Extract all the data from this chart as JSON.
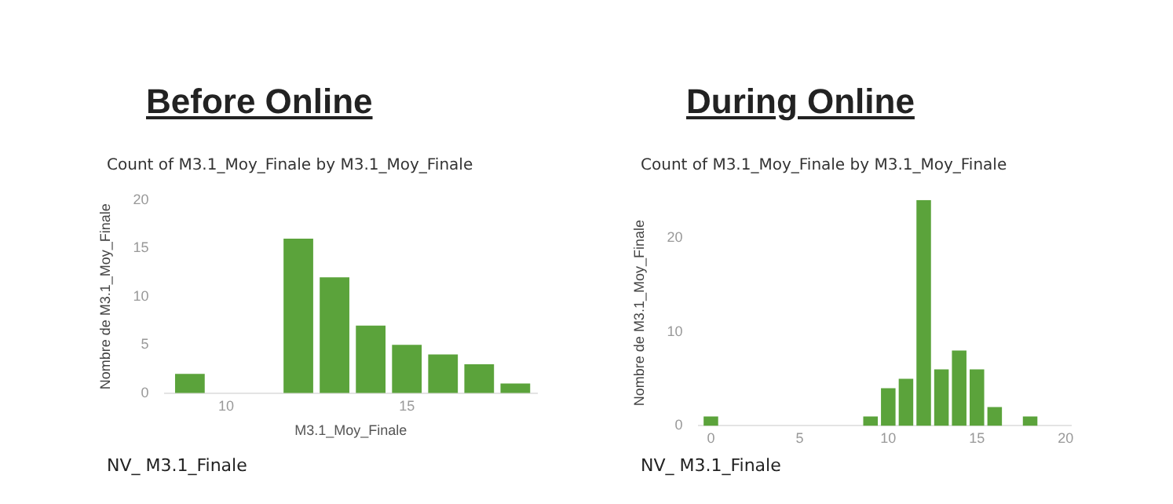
{
  "chart_data": [
    {
      "type": "bar",
      "title": "Before Online",
      "subtitle": "Count of M3.1_Moy_Finale by M3.1_Moy_Finale",
      "xlabel": "M3.1_Moy_Finale",
      "ylabel": "Nombre de M3.1_Moy_Finale",
      "annotations": [
        "NV_ M3.1_Finale"
      ],
      "x": [
        9,
        12,
        13,
        14,
        15,
        16,
        17,
        18
      ],
      "values": [
        2,
        16,
        12,
        7,
        5,
        4,
        3,
        1
      ],
      "color": "#5ba33b",
      "xlim": [
        8.3,
        18.6
      ],
      "xticks": [
        10,
        15
      ],
      "ylim": [
        0,
        20
      ],
      "yticks": [
        0,
        5,
        10,
        15,
        20
      ],
      "grid": false,
      "legend": false
    },
    {
      "type": "bar",
      "title": "During Online",
      "subtitle": "Count of M3.1_Moy_Finale by M3.1_Moy_Finale",
      "ylabel": "Nombre de M3.1_Moy_Finale",
      "annotations": [
        "NV_ M3.1_Finale"
      ],
      "x": [
        0,
        9,
        10,
        11,
        12,
        13,
        14,
        15,
        16,
        18
      ],
      "values": [
        1,
        1,
        4,
        5,
        24,
        6,
        8,
        6,
        2,
        1
      ],
      "color": "#5ba33b",
      "xlim": [
        -0.7,
        20.3
      ],
      "xticks": [
        0,
        5,
        10,
        15,
        20
      ],
      "ylim": [
        0,
        24
      ],
      "yticks": [
        0,
        10,
        20
      ],
      "grid": false,
      "legend": false
    }
  ]
}
